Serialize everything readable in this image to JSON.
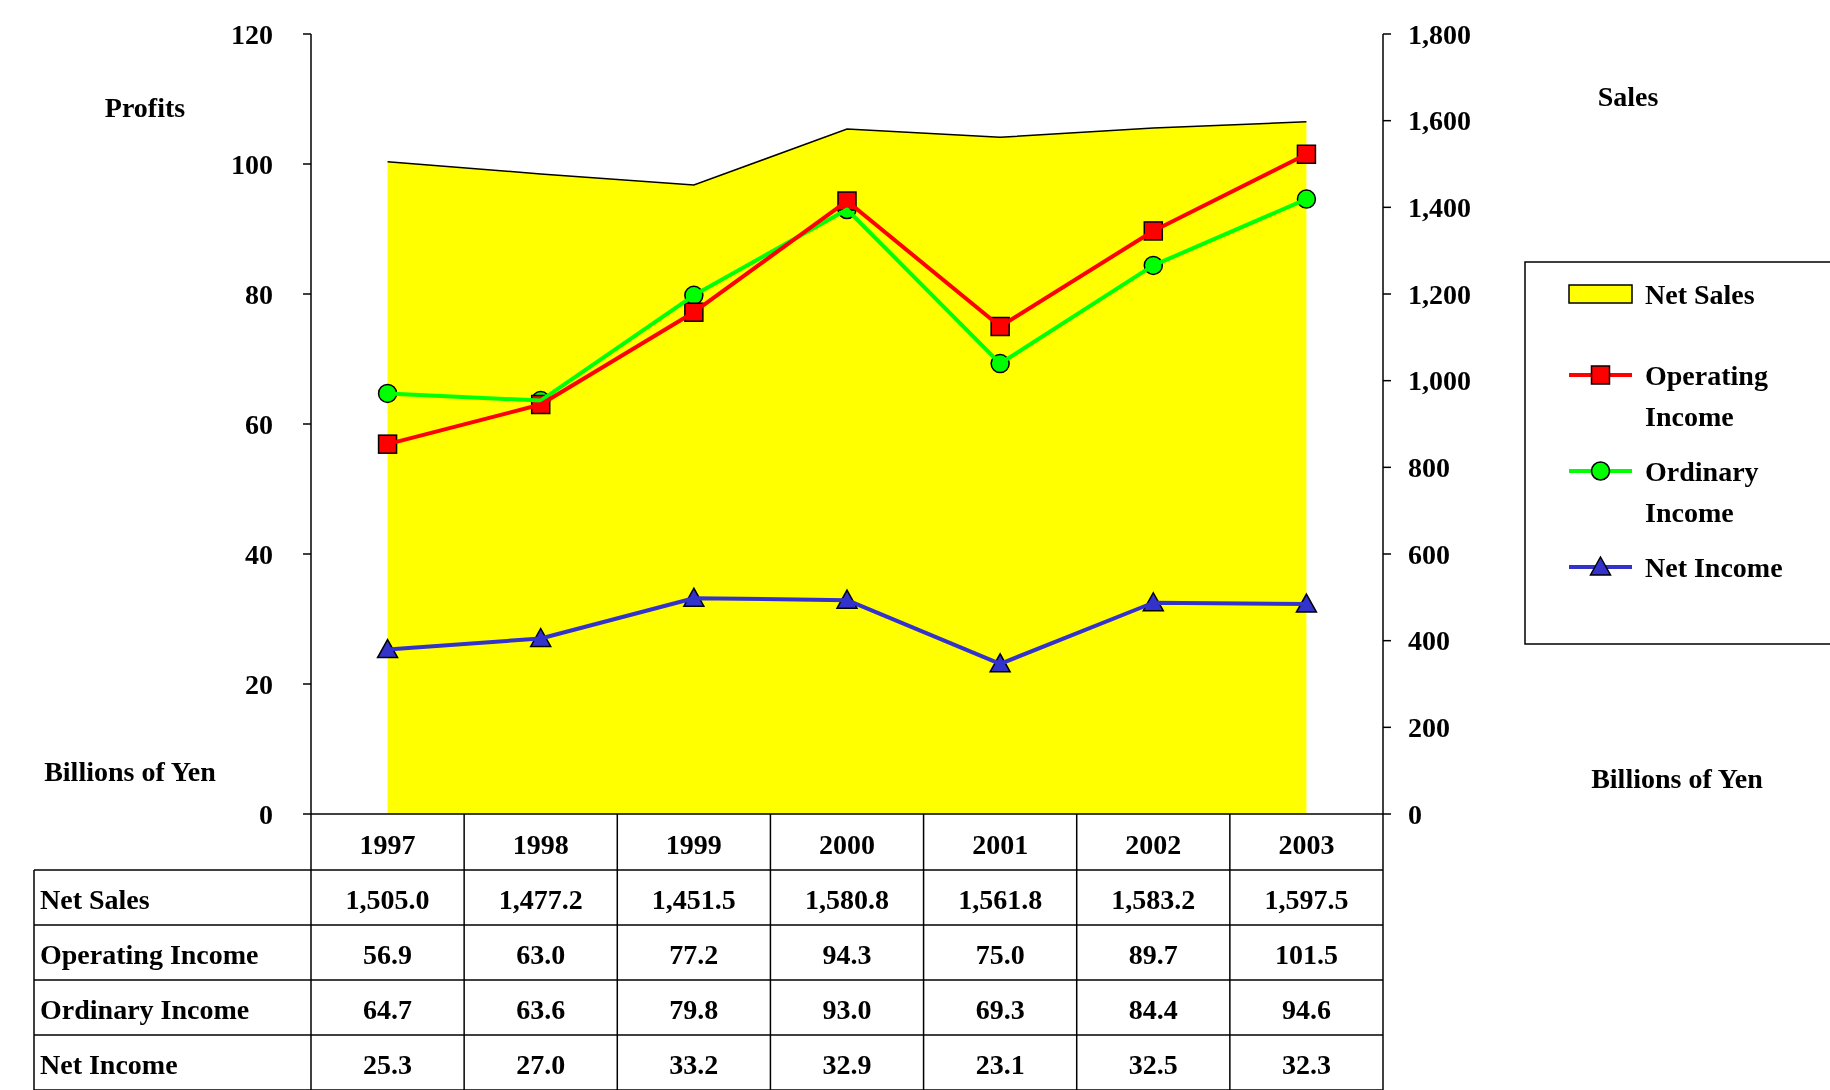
{
  "chart_data": {
    "type": "line",
    "ylabel": "Profits",
    "y2label": "Sales",
    "annotations": [
      "Billions of Yen",
      "Billions of Yen"
    ],
    "categories": [
      "1997",
      "1998",
      "1999",
      "2000",
      "2001",
      "2002",
      "2003"
    ],
    "series": [
      {
        "name": "Net Sales",
        "type": "area",
        "axis": "y2",
        "color": "#ffff00",
        "values": [
          1505.0,
          1477.2,
          1451.5,
          1580.8,
          1561.8,
          1583.2,
          1597.5
        ],
        "value_labels": [
          "1,505.0",
          "1,477.2",
          "1,451.5",
          "1,580.8",
          "1,561.8",
          "1,583.2",
          "1,597.5"
        ]
      },
      {
        "name": "Operating Income",
        "color": "#ff0000",
        "marker": "square",
        "values": [
          56.9,
          63.0,
          77.2,
          94.3,
          75.0,
          89.7,
          101.5
        ],
        "value_labels": [
          "56.9",
          "63.0",
          "77.2",
          "94.3",
          "75.0",
          "89.7",
          "101.5"
        ]
      },
      {
        "name": "Ordinary Income",
        "color": "#00ff00",
        "marker": "circle",
        "values": [
          64.7,
          63.6,
          79.8,
          93.0,
          69.3,
          84.4,
          94.6
        ],
        "value_labels": [
          "64.7",
          "63.6",
          "79.8",
          "93.0",
          "69.3",
          "84.4",
          "94.6"
        ]
      },
      {
        "name": "Net Income",
        "color": "#3333cc",
        "marker": "triangle",
        "values": [
          25.3,
          27.0,
          33.2,
          32.9,
          23.1,
          32.5,
          32.3
        ],
        "value_labels": [
          "25.3",
          "27.0",
          "33.2",
          "32.9",
          "23.1",
          "32.5",
          "32.3"
        ]
      }
    ],
    "ylim": [
      0,
      120
    ],
    "yticks": [
      0,
      20,
      40,
      60,
      80,
      100,
      120
    ],
    "y2lim": [
      0,
      1800
    ],
    "y2ticks": [
      0,
      200,
      400,
      600,
      800,
      {
        "value": 1000,
        "label": "1,000"
      },
      {
        "value": 1200,
        "label": "1,200"
      },
      {
        "value": 1400,
        "label": "1,400"
      },
      {
        "value": 1600,
        "label": "1,600"
      },
      {
        "value": 1800,
        "label": "1,800"
      }
    ],
    "grid": false,
    "legend": "right"
  }
}
